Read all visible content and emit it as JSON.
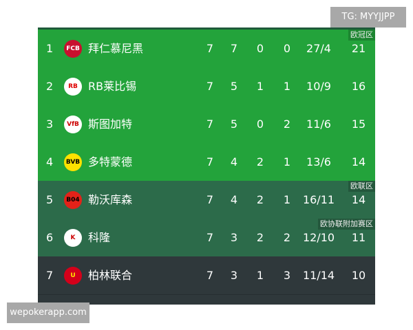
{
  "rows": [
    {
      "rank": "1",
      "team": "拜仁慕尼黑",
      "logo": "bayern-logo-icon",
      "p": "7",
      "w": "7",
      "d": "0",
      "l": "0",
      "gd": "27/4",
      "pts": "21",
      "zone": "欧冠区"
    },
    {
      "rank": "2",
      "team": "RB莱比锡",
      "logo": "leipzig-logo-icon",
      "p": "7",
      "w": "5",
      "d": "1",
      "l": "1",
      "gd": "10/9",
      "pts": "16"
    },
    {
      "rank": "3",
      "team": "斯图加特",
      "logo": "stuttgart-logo-icon",
      "p": "7",
      "w": "5",
      "d": "0",
      "l": "2",
      "gd": "11/6",
      "pts": "15"
    },
    {
      "rank": "4",
      "team": "多特蒙德",
      "logo": "dortmund-logo-icon",
      "p": "7",
      "w": "4",
      "d": "2",
      "l": "1",
      "gd": "13/6",
      "pts": "14"
    },
    {
      "rank": "5",
      "team": "勒沃库森",
      "logo": "leverkusen-logo-icon",
      "p": "7",
      "w": "4",
      "d": "2",
      "l": "1",
      "gd": "16/11",
      "pts": "14",
      "zone": "欧联区"
    },
    {
      "rank": "6",
      "team": "科隆",
      "logo": "koln-logo-icon",
      "p": "7",
      "w": "3",
      "d": "2",
      "l": "2",
      "gd": "12/10",
      "pts": "11",
      "zone": "欧协联附加赛区"
    },
    {
      "rank": "7",
      "team": "柏林联合",
      "logo": "union-berlin-logo-icon",
      "p": "7",
      "w": "3",
      "d": "1",
      "l": "3",
      "gd": "11/14",
      "pts": "10"
    }
  ],
  "watermarks": {
    "top": "TG: MYYJJPP",
    "bottom": "wepokerapp.com"
  },
  "colors": {
    "ucl": "#23a33b",
    "uel": "#2c6b4a",
    "other": "#2f383b"
  }
}
